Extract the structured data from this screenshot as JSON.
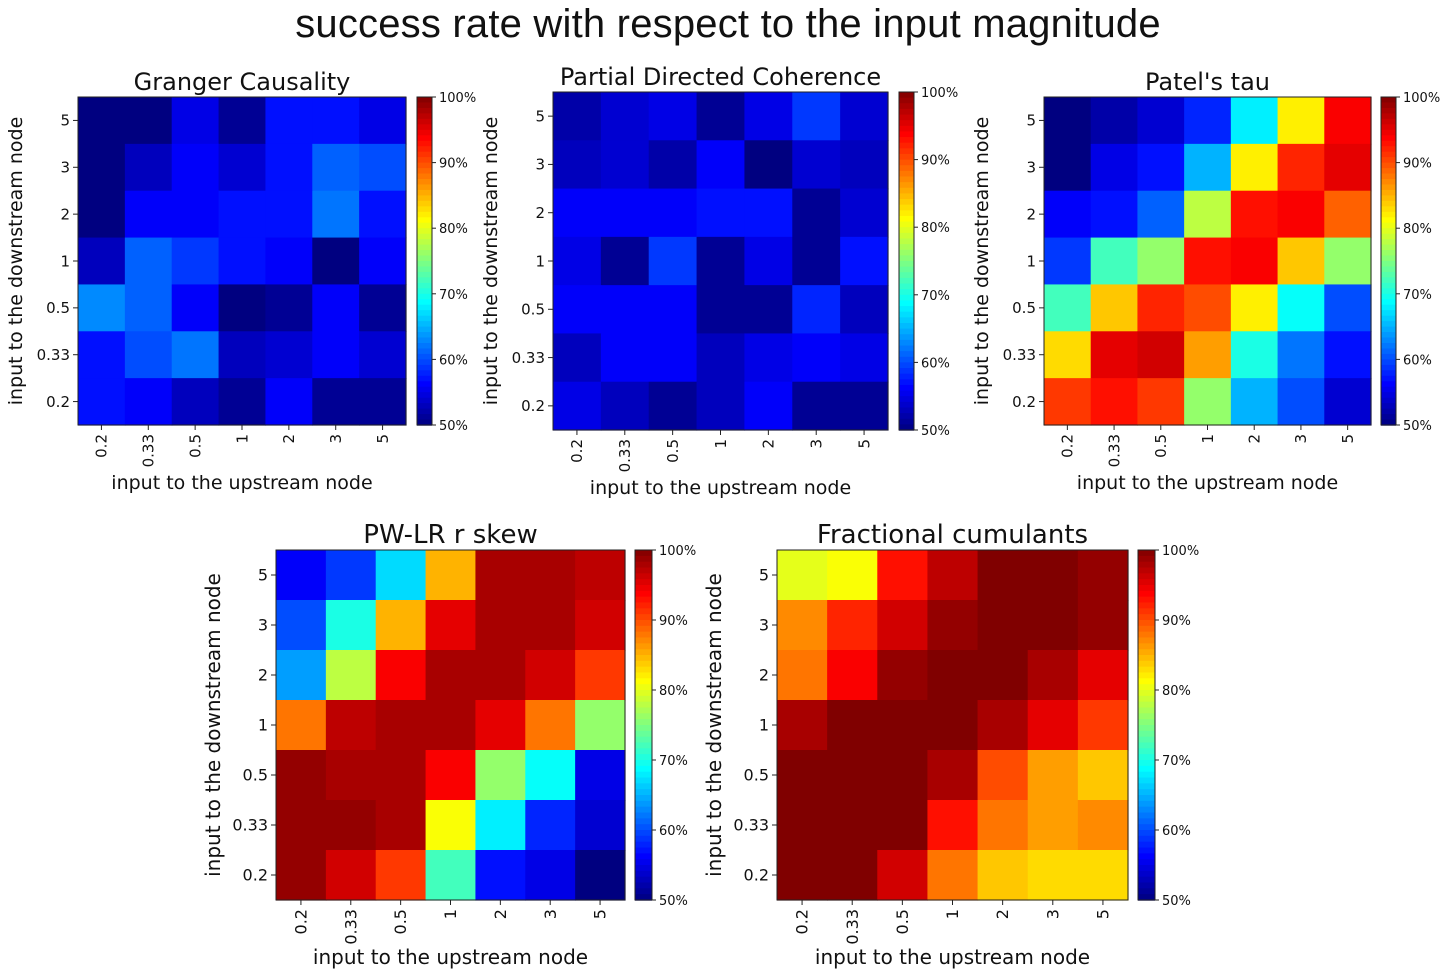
{
  "figure": {
    "title": "success rate with respect to the input magnitude"
  },
  "chart_data": [
    {
      "type": "heatmap",
      "title": "Granger Causality",
      "xlabel": "input to the upstream node",
      "ylabel": "input to the downstream node",
      "x_ticks": [
        "0.2",
        "0.33",
        "0.5",
        "1",
        "2",
        "3",
        "5"
      ],
      "y_ticks": [
        "5",
        "3",
        "2",
        "1",
        "0.5",
        "0.33",
        "0.2"
      ],
      "colorbar": {
        "min": 50,
        "max": 100,
        "ticks": [
          "100%",
          "90%",
          "80%",
          "70%",
          "60%",
          "50%"
        ],
        "colormap": "jet"
      },
      "values": [
        [
          50,
          50,
          55,
          51,
          57,
          57,
          55
        ],
        [
          50,
          53,
          56,
          54,
          57,
          61,
          60
        ],
        [
          50,
          56,
          56,
          57,
          57,
          62,
          57
        ],
        [
          53,
          61,
          59,
          57,
          56,
          50,
          56
        ],
        [
          63,
          61,
          56,
          50,
          51,
          56,
          51
        ],
        [
          57,
          60,
          62,
          53,
          54,
          56,
          54
        ],
        [
          57,
          56,
          53,
          51,
          56,
          51,
          51
        ]
      ]
    },
    {
      "type": "heatmap",
      "title": "Partial Directed Coherence",
      "xlabel": "input to the upstream node",
      "ylabel": "input to the downstream node",
      "x_ticks": [
        "0.2",
        "0.33",
        "0.5",
        "1",
        "2",
        "3",
        "5"
      ],
      "y_ticks": [
        "5",
        "3",
        "2",
        "1",
        "0.5",
        "0.33",
        "0.2"
      ],
      "colorbar": {
        "min": 50,
        "max": 100,
        "ticks": [
          "100%",
          "90%",
          "80%",
          "70%",
          "60%",
          "50%"
        ],
        "colormap": "jet"
      },
      "values": [
        [
          52,
          54,
          55,
          51,
          55,
          59,
          54
        ],
        [
          53,
          54,
          52,
          56,
          50,
          54,
          53
        ],
        [
          56,
          56,
          56,
          57,
          57,
          51,
          54
        ],
        [
          55,
          51,
          59,
          51,
          55,
          51,
          57
        ],
        [
          56,
          56,
          56,
          51,
          51,
          58,
          53
        ],
        [
          53,
          56,
          56,
          53,
          55,
          56,
          55
        ],
        [
          55,
          53,
          51,
          53,
          56,
          51,
          51
        ]
      ]
    },
    {
      "type": "heatmap",
      "title": "Patel's tau",
      "xlabel": "input to the upstream node",
      "ylabel": "input to the downstream node",
      "x_ticks": [
        "0.2",
        "0.33",
        "0.5",
        "1",
        "2",
        "3",
        "5"
      ],
      "y_ticks": [
        "5",
        "3",
        "2",
        "1",
        "0.5",
        "0.33",
        "0.2"
      ],
      "colorbar": {
        "min": 50,
        "max": 100,
        "ticks": [
          "100%",
          "90%",
          "80%",
          "70%",
          "60%",
          "50%"
        ],
        "colormap": "jet"
      },
      "values": [
        [
          50,
          52,
          54,
          58,
          68,
          82,
          94
        ],
        [
          50,
          55,
          57,
          65,
          82,
          92,
          95
        ],
        [
          56,
          57,
          61,
          78,
          93,
          94,
          89
        ],
        [
          59,
          72,
          76,
          93,
          94,
          84,
          76
        ],
        [
          72,
          84,
          92,
          90,
          82,
          69,
          60
        ],
        [
          83,
          95,
          96,
          86,
          70,
          62,
          57
        ],
        [
          91,
          93,
          91,
          76,
          65,
          60,
          54
        ]
      ]
    },
    {
      "type": "heatmap",
      "title": "PW-LR r skew",
      "xlabel": "input to the upstream node",
      "ylabel": "input to the downstream node",
      "x_ticks": [
        "0.2",
        "0.33",
        "0.5",
        "1",
        "2",
        "3",
        "5"
      ],
      "y_ticks": [
        "5",
        "3",
        "2",
        "1",
        "0.5",
        "0.33",
        "0.2"
      ],
      "colorbar": {
        "min": 50,
        "max": 100,
        "ticks": [
          "100%",
          "90%",
          "80%",
          "70%",
          "60%",
          "50%"
        ],
        "colormap": "jet"
      },
      "values": [
        [
          56,
          59,
          67,
          85,
          98,
          98,
          97
        ],
        [
          60,
          70,
          85,
          95,
          98,
          98,
          96
        ],
        [
          64,
          78,
          94,
          98,
          98,
          96,
          91
        ],
        [
          88,
          97,
          98,
          98,
          95,
          88,
          76
        ],
        [
          99,
          98,
          98,
          94,
          76,
          69,
          55
        ],
        [
          99,
          99,
          98,
          81,
          68,
          58,
          54
        ],
        [
          99,
          96,
          91,
          72,
          57,
          55,
          50
        ]
      ]
    },
    {
      "type": "heatmap",
      "title": "Fractional cumulants",
      "xlabel": "input to the upstream node",
      "ylabel": "input to the downstream node",
      "x_ticks": [
        "0.2",
        "0.33",
        "0.5",
        "1",
        "2",
        "3",
        "5"
      ],
      "y_ticks": [
        "5",
        "3",
        "2",
        "1",
        "0.5",
        "0.33",
        "0.2"
      ],
      "colorbar": {
        "min": 50,
        "max": 100,
        "ticks": [
          "100%",
          "90%",
          "80%",
          "70%",
          "60%",
          "50%"
        ],
        "colormap": "jet"
      },
      "values": [
        [
          80,
          81,
          93,
          97,
          100,
          100,
          99
        ],
        [
          87,
          92,
          96,
          99,
          100,
          100,
          99
        ],
        [
          88,
          94,
          99,
          100,
          100,
          98,
          95
        ],
        [
          98,
          100,
          100,
          100,
          98,
          95,
          91
        ],
        [
          100,
          100,
          100,
          98,
          90,
          86,
          84
        ],
        [
          100,
          100,
          100,
          93,
          88,
          86,
          87
        ],
        [
          100,
          100,
          96,
          88,
          84,
          83,
          83
        ]
      ]
    }
  ]
}
